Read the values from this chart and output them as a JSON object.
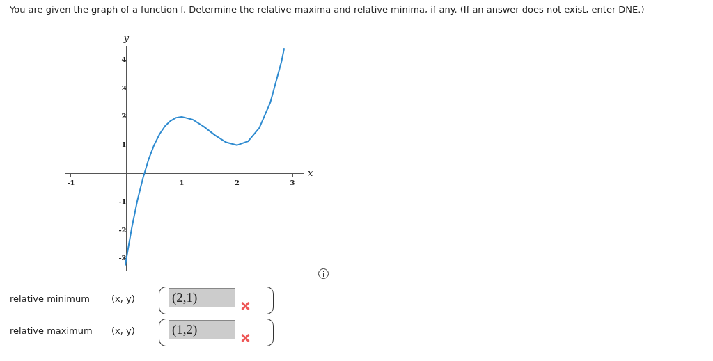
{
  "chart_data": {
    "type": "line",
    "title": "You are given the graph of a function f. Determine the relative maxima and relative minima, if any. (If an answer does not exist, enter DNE.)",
    "xlabel": "x",
    "ylabel": "y",
    "series": [
      {
        "color": "#2f8bd0",
        "x": [
          -0.02,
          0,
          0.1,
          0.2,
          0.3,
          0.4,
          0.5,
          0.6,
          0.7,
          0.8,
          0.9,
          1.0,
          1.2,
          1.4,
          1.6,
          1.8,
          2.0,
          2.2,
          2.4,
          2.6,
          2.8,
          2.85
        ],
        "values": [
          -3.24,
          -3,
          -1.89,
          -0.94,
          -0.16,
          0.49,
          1.0,
          1.39,
          1.68,
          1.86,
          1.97,
          2,
          1.9,
          1.65,
          1.35,
          1.1,
          1,
          1.14,
          1.61,
          2.51,
          3.94,
          4.42
        ]
      }
    ],
    "xlim": [
      -1.1,
      3.2
    ],
    "ylim": [
      -3.4,
      4.5
    ],
    "xticks": [
      -1,
      1,
      2,
      3
    ],
    "yticks": [
      -3,
      -2,
      -1,
      1,
      2,
      3,
      4
    ],
    "grid": false,
    "legend": false,
    "marker": "none",
    "line_style": "solid",
    "annotations": [
      "relative minimum",
      "(x, y) =",
      "(2,1)",
      "relative maximum",
      "(x, y) =",
      "(1,2)"
    ]
  }
}
